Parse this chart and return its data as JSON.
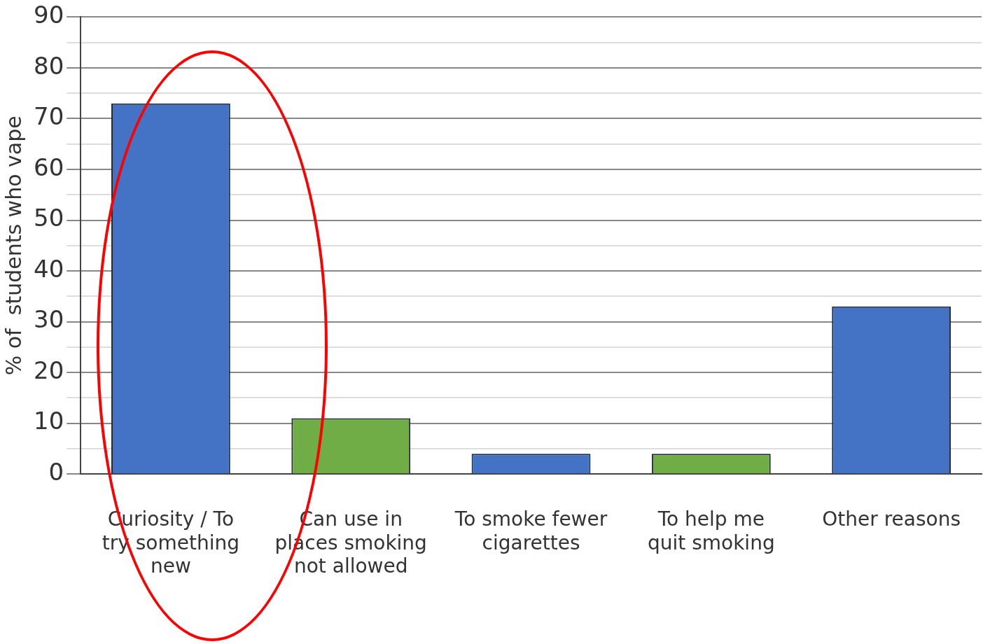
{
  "chart_data": {
    "type": "bar",
    "ylabel": "% of  students who vape",
    "categories": [
      "Curiosity / To try something new",
      "Can use in places smoking not allowed",
      "To smoke fewer cigarettes",
      "To help me quit smoking",
      "Other reasons"
    ],
    "values": [
      73,
      11,
      4,
      4,
      33
    ],
    "colors": [
      "#4472c4",
      "#70ad47",
      "#4472c4",
      "#70ad47",
      "#4472c4"
    ],
    "ylim": [
      0,
      90
    ],
    "yticks": [
      0,
      {
        "value": 5,
        "label": null
      },
      10,
      {
        "value": 15,
        "label": null
      },
      20,
      {
        "value": 25,
        "label": null
      },
      30,
      {
        "value": 35,
        "label": null
      },
      40,
      {
        "value": 45,
        "label": null
      },
      50,
      {
        "value": 55,
        "label": null
      },
      60,
      {
        "value": 65,
        "label": null
      },
      70,
      {
        "value": 75,
        "label": null
      },
      80,
      {
        "value": 85,
        "label": null
      },
      90
    ],
    "grid": "y",
    "legend": false
  }
}
